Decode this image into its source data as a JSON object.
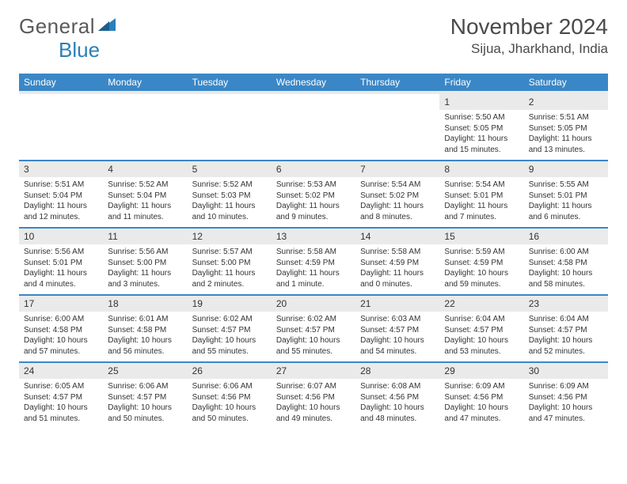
{
  "logo": {
    "text1": "General",
    "text2": "Blue"
  },
  "header": {
    "title": "November 2024",
    "location": "Sijua, Jharkhand, India"
  },
  "colors": {
    "header_bg": "#3a87c7",
    "header_fg": "#ffffff",
    "daynum_bg": "#eaeaea",
    "text": "#333333",
    "logo_gray": "#5a5a5a",
    "logo_blue": "#2c7fb8"
  },
  "dayNames": [
    "Sunday",
    "Monday",
    "Tuesday",
    "Wednesday",
    "Thursday",
    "Friday",
    "Saturday"
  ],
  "weeks": [
    [
      {
        "n": "",
        "sr": "",
        "ss": "",
        "dl": ""
      },
      {
        "n": "",
        "sr": "",
        "ss": "",
        "dl": ""
      },
      {
        "n": "",
        "sr": "",
        "ss": "",
        "dl": ""
      },
      {
        "n": "",
        "sr": "",
        "ss": "",
        "dl": ""
      },
      {
        "n": "",
        "sr": "",
        "ss": "",
        "dl": ""
      },
      {
        "n": "1",
        "sr": "Sunrise: 5:50 AM",
        "ss": "Sunset: 5:05 PM",
        "dl": "Daylight: 11 hours and 15 minutes."
      },
      {
        "n": "2",
        "sr": "Sunrise: 5:51 AM",
        "ss": "Sunset: 5:05 PM",
        "dl": "Daylight: 11 hours and 13 minutes."
      }
    ],
    [
      {
        "n": "3",
        "sr": "Sunrise: 5:51 AM",
        "ss": "Sunset: 5:04 PM",
        "dl": "Daylight: 11 hours and 12 minutes."
      },
      {
        "n": "4",
        "sr": "Sunrise: 5:52 AM",
        "ss": "Sunset: 5:04 PM",
        "dl": "Daylight: 11 hours and 11 minutes."
      },
      {
        "n": "5",
        "sr": "Sunrise: 5:52 AM",
        "ss": "Sunset: 5:03 PM",
        "dl": "Daylight: 11 hours and 10 minutes."
      },
      {
        "n": "6",
        "sr": "Sunrise: 5:53 AM",
        "ss": "Sunset: 5:02 PM",
        "dl": "Daylight: 11 hours and 9 minutes."
      },
      {
        "n": "7",
        "sr": "Sunrise: 5:54 AM",
        "ss": "Sunset: 5:02 PM",
        "dl": "Daylight: 11 hours and 8 minutes."
      },
      {
        "n": "8",
        "sr": "Sunrise: 5:54 AM",
        "ss": "Sunset: 5:01 PM",
        "dl": "Daylight: 11 hours and 7 minutes."
      },
      {
        "n": "9",
        "sr": "Sunrise: 5:55 AM",
        "ss": "Sunset: 5:01 PM",
        "dl": "Daylight: 11 hours and 6 minutes."
      }
    ],
    [
      {
        "n": "10",
        "sr": "Sunrise: 5:56 AM",
        "ss": "Sunset: 5:01 PM",
        "dl": "Daylight: 11 hours and 4 minutes."
      },
      {
        "n": "11",
        "sr": "Sunrise: 5:56 AM",
        "ss": "Sunset: 5:00 PM",
        "dl": "Daylight: 11 hours and 3 minutes."
      },
      {
        "n": "12",
        "sr": "Sunrise: 5:57 AM",
        "ss": "Sunset: 5:00 PM",
        "dl": "Daylight: 11 hours and 2 minutes."
      },
      {
        "n": "13",
        "sr": "Sunrise: 5:58 AM",
        "ss": "Sunset: 4:59 PM",
        "dl": "Daylight: 11 hours and 1 minute."
      },
      {
        "n": "14",
        "sr": "Sunrise: 5:58 AM",
        "ss": "Sunset: 4:59 PM",
        "dl": "Daylight: 11 hours and 0 minutes."
      },
      {
        "n": "15",
        "sr": "Sunrise: 5:59 AM",
        "ss": "Sunset: 4:59 PM",
        "dl": "Daylight: 10 hours and 59 minutes."
      },
      {
        "n": "16",
        "sr": "Sunrise: 6:00 AM",
        "ss": "Sunset: 4:58 PM",
        "dl": "Daylight: 10 hours and 58 minutes."
      }
    ],
    [
      {
        "n": "17",
        "sr": "Sunrise: 6:00 AM",
        "ss": "Sunset: 4:58 PM",
        "dl": "Daylight: 10 hours and 57 minutes."
      },
      {
        "n": "18",
        "sr": "Sunrise: 6:01 AM",
        "ss": "Sunset: 4:58 PM",
        "dl": "Daylight: 10 hours and 56 minutes."
      },
      {
        "n": "19",
        "sr": "Sunrise: 6:02 AM",
        "ss": "Sunset: 4:57 PM",
        "dl": "Daylight: 10 hours and 55 minutes."
      },
      {
        "n": "20",
        "sr": "Sunrise: 6:02 AM",
        "ss": "Sunset: 4:57 PM",
        "dl": "Daylight: 10 hours and 55 minutes."
      },
      {
        "n": "21",
        "sr": "Sunrise: 6:03 AM",
        "ss": "Sunset: 4:57 PM",
        "dl": "Daylight: 10 hours and 54 minutes."
      },
      {
        "n": "22",
        "sr": "Sunrise: 6:04 AM",
        "ss": "Sunset: 4:57 PM",
        "dl": "Daylight: 10 hours and 53 minutes."
      },
      {
        "n": "23",
        "sr": "Sunrise: 6:04 AM",
        "ss": "Sunset: 4:57 PM",
        "dl": "Daylight: 10 hours and 52 minutes."
      }
    ],
    [
      {
        "n": "24",
        "sr": "Sunrise: 6:05 AM",
        "ss": "Sunset: 4:57 PM",
        "dl": "Daylight: 10 hours and 51 minutes."
      },
      {
        "n": "25",
        "sr": "Sunrise: 6:06 AM",
        "ss": "Sunset: 4:57 PM",
        "dl": "Daylight: 10 hours and 50 minutes."
      },
      {
        "n": "26",
        "sr": "Sunrise: 6:06 AM",
        "ss": "Sunset: 4:56 PM",
        "dl": "Daylight: 10 hours and 50 minutes."
      },
      {
        "n": "27",
        "sr": "Sunrise: 6:07 AM",
        "ss": "Sunset: 4:56 PM",
        "dl": "Daylight: 10 hours and 49 minutes."
      },
      {
        "n": "28",
        "sr": "Sunrise: 6:08 AM",
        "ss": "Sunset: 4:56 PM",
        "dl": "Daylight: 10 hours and 48 minutes."
      },
      {
        "n": "29",
        "sr": "Sunrise: 6:09 AM",
        "ss": "Sunset: 4:56 PM",
        "dl": "Daylight: 10 hours and 47 minutes."
      },
      {
        "n": "30",
        "sr": "Sunrise: 6:09 AM",
        "ss": "Sunset: 4:56 PM",
        "dl": "Daylight: 10 hours and 47 minutes."
      }
    ]
  ]
}
